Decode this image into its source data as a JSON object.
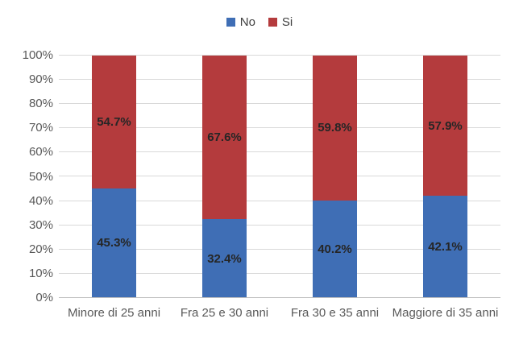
{
  "chart_data": {
    "type": "bar",
    "stacked": true,
    "orientation": "vertical",
    "title": "",
    "xlabel": "",
    "ylabel": "",
    "categories": [
      "Minore di 25 anni",
      "Fra 25 e 30 anni",
      "Fra 30 e 35 anni",
      "Maggiore di 35 anni"
    ],
    "series": [
      {
        "name": "No",
        "color": "#3F6EB5",
        "values": [
          45.3,
          32.4,
          40.2,
          42.1
        ]
      },
      {
        "name": "Si",
        "color": "#B43B3D",
        "values": [
          54.7,
          67.6,
          59.8,
          57.9
        ]
      }
    ],
    "data_label_suffix": "%",
    "ylim": [
      0,
      100
    ],
    "y_tick_step": 10,
    "y_tick_labels": [
      "0%",
      "10%",
      "20%",
      "30%",
      "40%",
      "50%",
      "60%",
      "70%",
      "80%",
      "90%",
      "100%"
    ],
    "grid": true,
    "legend_position": "top"
  },
  "colors": {
    "background": "#FFFFFF",
    "gridline": "#D9D9D9",
    "axis_line": "#BFBFBF",
    "axis_text": "#595959",
    "data_label_text": "#262626",
    "legend_text": "#404040"
  }
}
